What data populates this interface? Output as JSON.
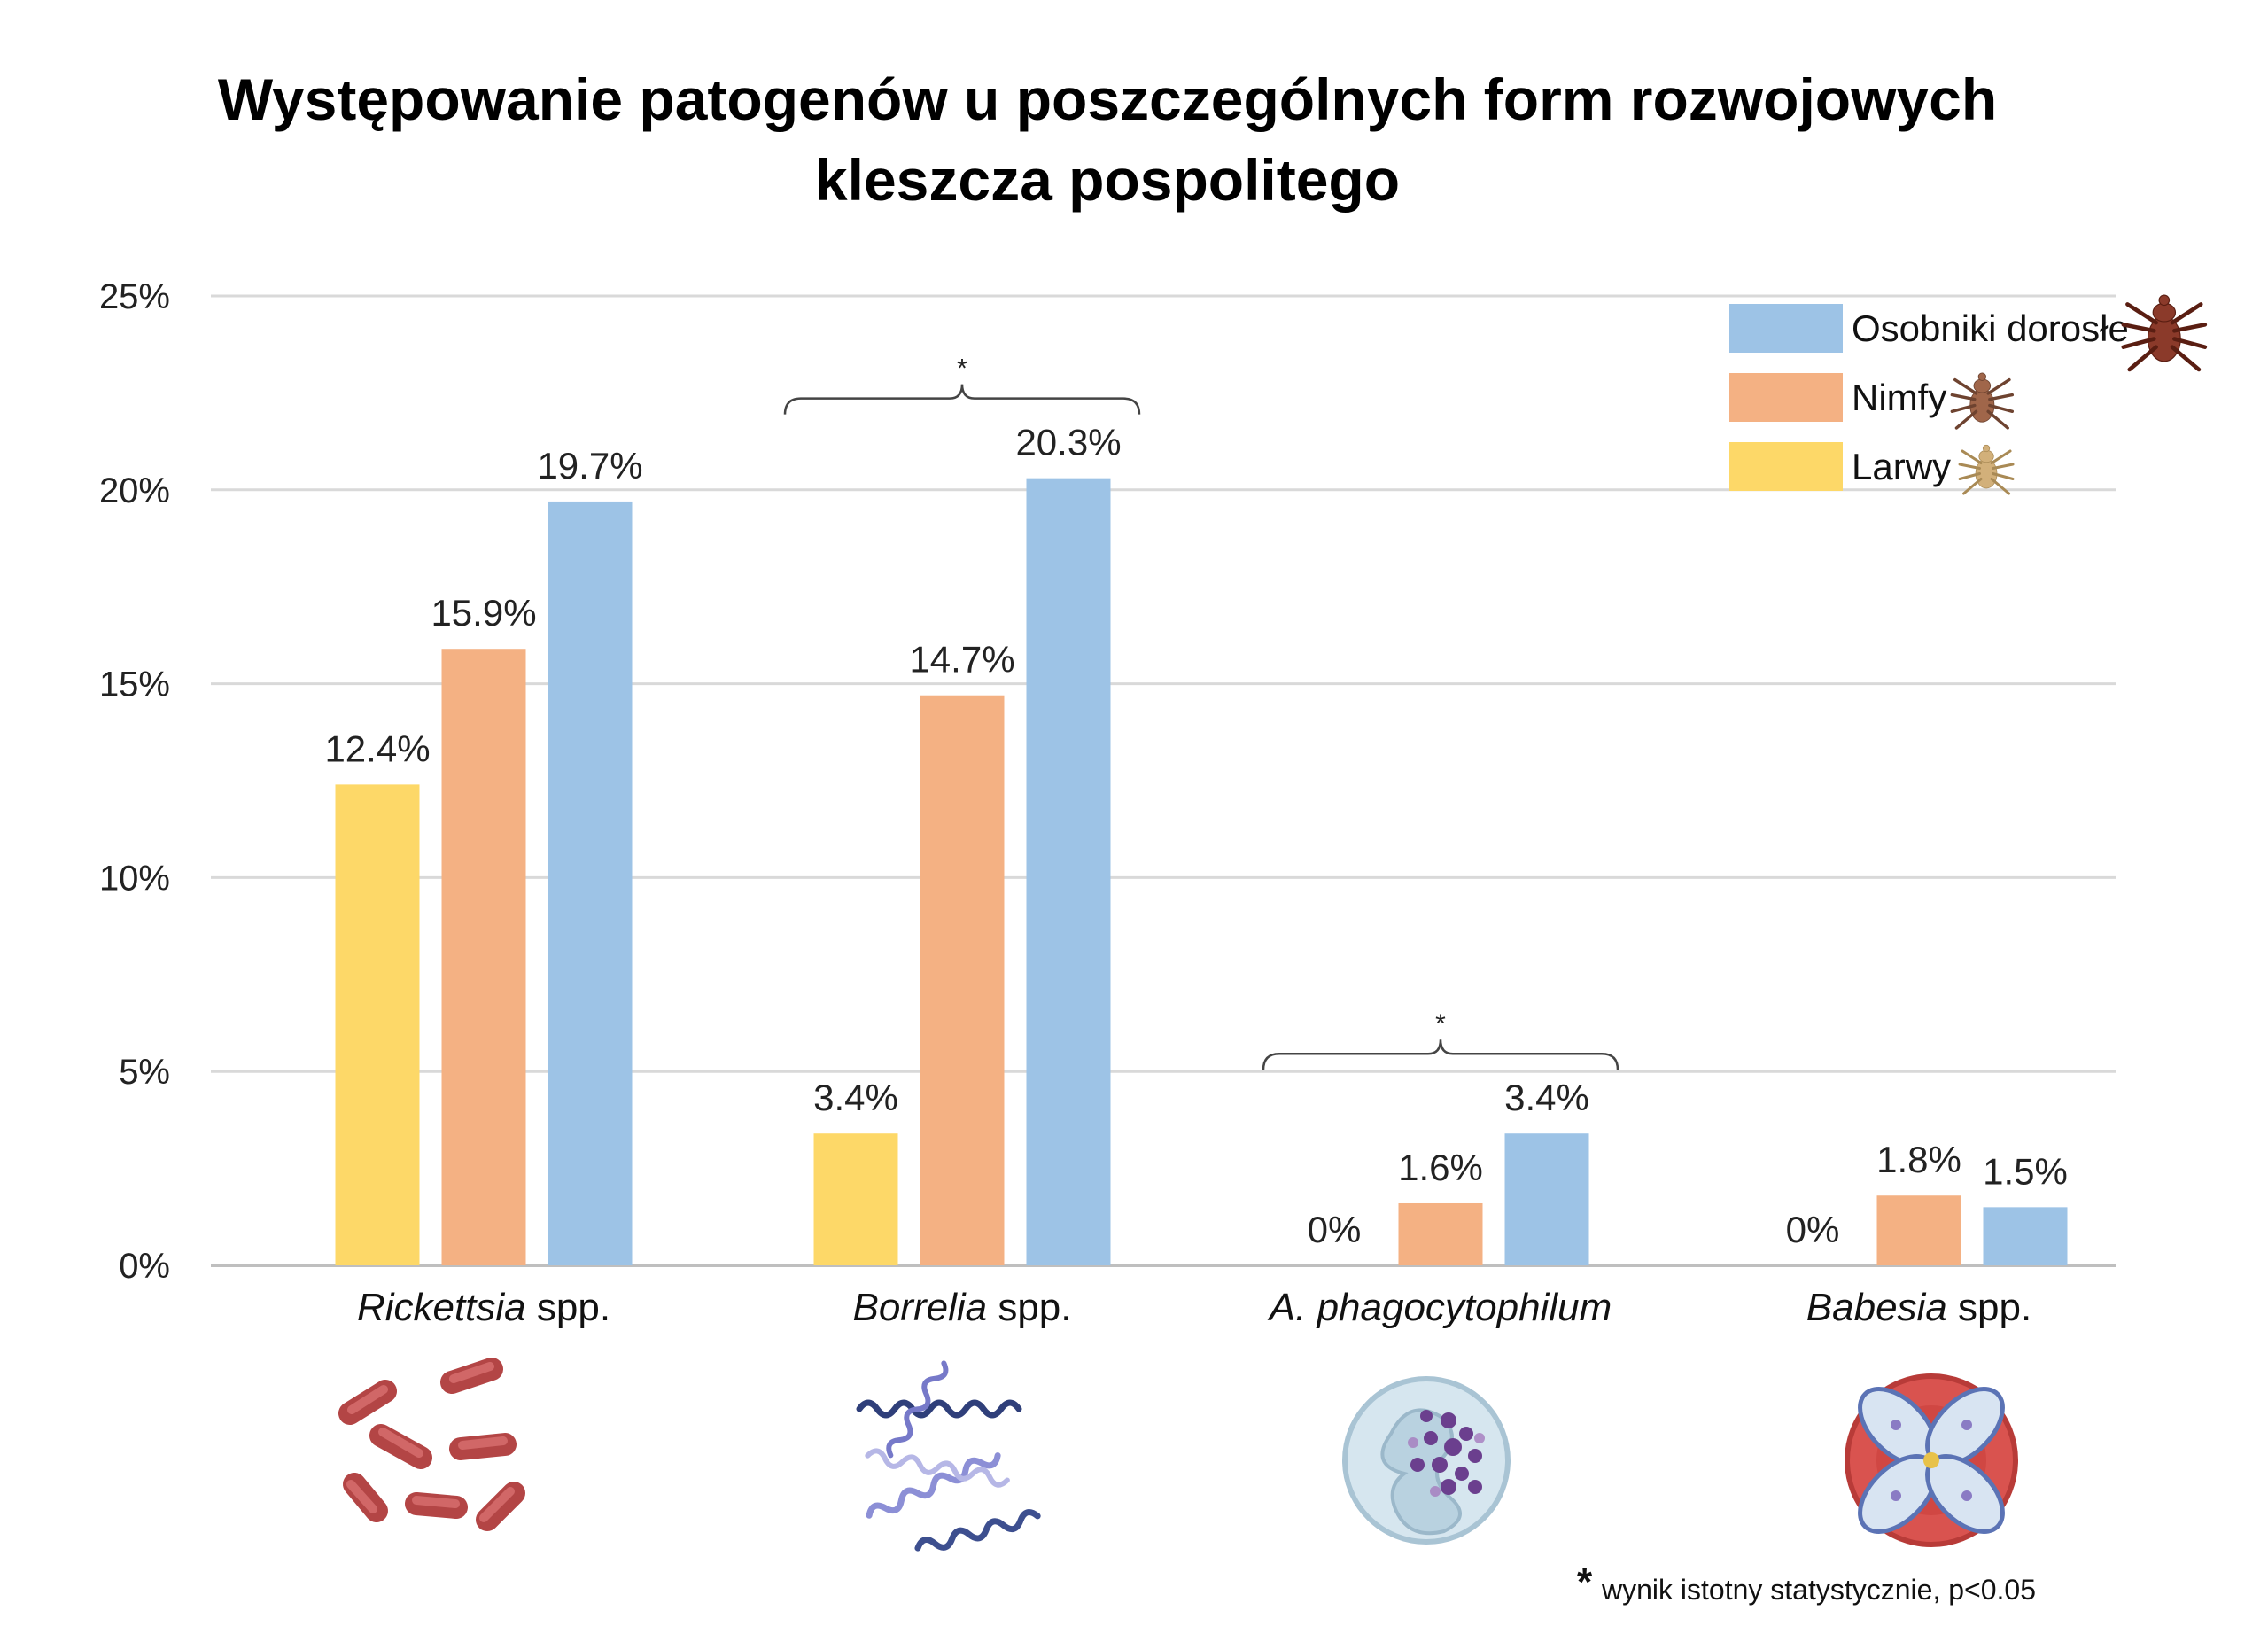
{
  "chart_data": {
    "type": "bar",
    "title_lines": [
      "Występowanie patogenów u poszczególnych form rozwojowych",
      "kleszcza pospolitego"
    ],
    "categories": [
      {
        "italic": "Rickettsia",
        "suffix": " spp."
      },
      {
        "italic": "Borrelia",
        "suffix": " spp."
      },
      {
        "italic": "A. phagocytophilum",
        "suffix": ""
      },
      {
        "italic": "Babesia",
        "suffix": " spp."
      }
    ],
    "series": [
      {
        "name": "Larwy",
        "color": "#FDD868",
        "values": [
          12.4,
          3.4,
          0,
          0
        ],
        "labels": [
          "12.4%",
          "3.4%",
          "0%",
          "0%"
        ]
      },
      {
        "name": "Nimfy",
        "color": "#F4B183",
        "values": [
          15.9,
          14.7,
          1.6,
          1.8
        ],
        "labels": [
          "15.9%",
          "14.7%",
          "1.6%",
          "1.8%"
        ]
      },
      {
        "name": "Osobniki dorosłe",
        "color": "#9DC3E6",
        "values": [
          19.7,
          20.3,
          3.4,
          1.5
        ],
        "labels": [
          "19.7%",
          "20.3%",
          "3.4%",
          "1.5%"
        ]
      }
    ],
    "ylim": [
      0,
      25
    ],
    "yticks": [
      0,
      5,
      10,
      15,
      20,
      25
    ],
    "ytick_labels": [
      "0%",
      "5%",
      "10%",
      "15%",
      "20%",
      "25%"
    ],
    "grid": true,
    "legend_position": "top-right",
    "legend_order": [
      "Osobniki dorosłe",
      "Nimfy",
      "Larwy"
    ],
    "significance": [
      {
        "category": 1,
        "mark": "*"
      },
      {
        "category": 2,
        "mark": "*"
      }
    ],
    "footnote": {
      "star": "*",
      "text": "wynik istotny statystycznie, p<0.05"
    },
    "icons": [
      "rod-bacteria-icon",
      "spirochete-icon",
      "neutrophil-cell-icon",
      "infected-red-blood-cell-icon"
    ],
    "legend_icons": [
      "adult-tick-icon",
      "nymph-tick-icon",
      "larva-tick-icon"
    ]
  }
}
